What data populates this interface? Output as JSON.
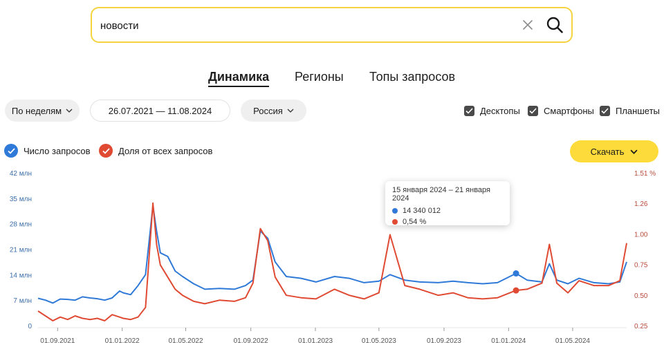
{
  "search": {
    "value": "новости"
  },
  "tabs": [
    {
      "label": "Динамика",
      "active": true
    },
    {
      "label": "Регионы",
      "active": false
    },
    {
      "label": "Топы запросов",
      "active": false
    }
  ],
  "filters": {
    "period_label": "По неделям",
    "date_range": "26.07.2021 — 11.08.2024",
    "region_label": "Россия"
  },
  "devices": [
    {
      "label": "Десктопы",
      "checked": true
    },
    {
      "label": "Смартфоны",
      "checked": true
    },
    {
      "label": "Планшеты",
      "checked": true
    }
  ],
  "legend": {
    "queries": {
      "label": "Число запросов",
      "color": "#2f7ad8"
    },
    "share": {
      "label": "Доля от всех запросов",
      "color": "#e04a33"
    }
  },
  "download_label": "Скачать",
  "tooltip": {
    "title": "15 января 2024 – 21 января 2024",
    "queries_value": "14 340 012",
    "share_value": "0,54 %"
  },
  "chart_data": {
    "type": "line",
    "x_start": "2021-07-26",
    "x_end": "2024-08-11",
    "x_tick_labels": [
      "01.09.2021",
      "01.01.2022",
      "01.05.2022",
      "01.09.2022",
      "01.01.2023",
      "01.05.2023",
      "01.09.2023",
      "01.01.2024",
      "01.05.2024"
    ],
    "y_left": {
      "ticks": [
        "0",
        "7 млн",
        "14 млн",
        "21 млн",
        "28 млн",
        "35 млн",
        "42 млн"
      ],
      "range": [
        0,
        42000000
      ]
    },
    "y_right": {
      "ticks": [
        "0.25",
        "0.50",
        "0.75",
        "1.00",
        "1.26",
        "1.51 %"
      ],
      "range": [
        0.25,
        1.51
      ]
    },
    "series": [
      {
        "name": "Число запросов",
        "color": "#2f7ad8",
        "axis": "left",
        "points": [
          [
            "2021-07-26",
            7.5
          ],
          [
            "2021-08-09",
            7.0
          ],
          [
            "2021-08-23",
            6.2
          ],
          [
            "2021-09-06",
            7.3
          ],
          [
            "2021-09-20",
            7.2
          ],
          [
            "2021-10-04",
            7.0
          ],
          [
            "2021-10-18",
            7.9
          ],
          [
            "2021-11-01",
            7.6
          ],
          [
            "2021-11-15",
            7.4
          ],
          [
            "2021-11-29",
            7.0
          ],
          [
            "2021-12-13",
            7.6
          ],
          [
            "2021-12-27",
            9.5
          ],
          [
            "2022-01-03",
            9.0
          ],
          [
            "2022-01-17",
            8.5
          ],
          [
            "2022-01-31",
            11.0
          ],
          [
            "2022-02-14",
            14.0
          ],
          [
            "2022-02-28",
            33.0
          ],
          [
            "2022-03-07",
            26.0
          ],
          [
            "2022-03-14",
            20.0
          ],
          [
            "2022-03-28",
            19.0
          ],
          [
            "2022-04-11",
            15.0
          ],
          [
            "2022-04-25",
            13.5
          ],
          [
            "2022-05-16",
            11.5
          ],
          [
            "2022-06-06",
            10.0
          ],
          [
            "2022-07-04",
            10.2
          ],
          [
            "2022-08-01",
            10.0
          ],
          [
            "2022-08-22",
            11.0
          ],
          [
            "2022-09-05",
            12.5
          ],
          [
            "2022-09-19",
            26.0
          ],
          [
            "2022-10-03",
            24.0
          ],
          [
            "2022-10-17",
            17.5
          ],
          [
            "2022-11-07",
            13.5
          ],
          [
            "2022-12-05",
            13.0
          ],
          [
            "2023-01-02",
            12.0
          ],
          [
            "2023-02-06",
            13.5
          ],
          [
            "2023-03-06",
            13.0
          ],
          [
            "2023-04-03",
            11.8
          ],
          [
            "2023-05-01",
            12.2
          ],
          [
            "2023-05-22",
            14.0
          ],
          [
            "2023-06-19",
            12.5
          ],
          [
            "2023-07-17",
            12.0
          ],
          [
            "2023-08-21",
            11.8
          ],
          [
            "2023-09-18",
            12.2
          ],
          [
            "2023-10-16",
            11.8
          ],
          [
            "2023-11-13",
            11.5
          ],
          [
            "2023-12-11",
            11.8
          ],
          [
            "2024-01-15",
            14.34
          ],
          [
            "2024-02-05",
            12.5
          ],
          [
            "2024-03-04",
            12.0
          ],
          [
            "2024-03-18",
            17.0
          ],
          [
            "2024-04-01",
            12.5
          ],
          [
            "2024-04-22",
            11.5
          ],
          [
            "2024-05-13",
            13.0
          ],
          [
            "2024-06-10",
            11.8
          ],
          [
            "2024-07-08",
            11.5
          ],
          [
            "2024-07-29",
            12.0
          ],
          [
            "2024-08-11",
            17.5
          ]
        ]
      },
      {
        "name": "Доля от всех запросов",
        "color": "#e04a33",
        "axis": "right",
        "points": [
          [
            "2021-07-26",
            0.37
          ],
          [
            "2021-08-09",
            0.33
          ],
          [
            "2021-08-23",
            0.29
          ],
          [
            "2021-09-06",
            0.32
          ],
          [
            "2021-09-20",
            0.3
          ],
          [
            "2021-10-04",
            0.33
          ],
          [
            "2021-10-18",
            0.31
          ],
          [
            "2021-11-01",
            0.3
          ],
          [
            "2021-11-15",
            0.31
          ],
          [
            "2021-11-29",
            0.29
          ],
          [
            "2021-12-13",
            0.34
          ],
          [
            "2021-12-27",
            0.32
          ],
          [
            "2022-01-03",
            0.31
          ],
          [
            "2022-01-17",
            0.3
          ],
          [
            "2022-01-31",
            0.32
          ],
          [
            "2022-02-14",
            0.4
          ],
          [
            "2022-02-28",
            1.26
          ],
          [
            "2022-03-07",
            0.92
          ],
          [
            "2022-03-14",
            0.75
          ],
          [
            "2022-03-28",
            0.65
          ],
          [
            "2022-04-11",
            0.55
          ],
          [
            "2022-04-25",
            0.5
          ],
          [
            "2022-05-16",
            0.45
          ],
          [
            "2022-06-06",
            0.43
          ],
          [
            "2022-07-04",
            0.46
          ],
          [
            "2022-08-01",
            0.45
          ],
          [
            "2022-08-22",
            0.48
          ],
          [
            "2022-09-05",
            0.6
          ],
          [
            "2022-09-19",
            1.05
          ],
          [
            "2022-10-03",
            0.95
          ],
          [
            "2022-10-17",
            0.65
          ],
          [
            "2022-11-07",
            0.5
          ],
          [
            "2022-12-05",
            0.48
          ],
          [
            "2023-01-02",
            0.47
          ],
          [
            "2023-02-06",
            0.55
          ],
          [
            "2023-03-06",
            0.5
          ],
          [
            "2023-04-03",
            0.47
          ],
          [
            "2023-05-01",
            0.52
          ],
          [
            "2023-05-22",
            1.0
          ],
          [
            "2023-06-19",
            0.58
          ],
          [
            "2023-07-17",
            0.55
          ],
          [
            "2023-08-21",
            0.5
          ],
          [
            "2023-09-18",
            0.52
          ],
          [
            "2023-10-16",
            0.48
          ],
          [
            "2023-11-13",
            0.47
          ],
          [
            "2023-12-11",
            0.48
          ],
          [
            "2024-01-15",
            0.54
          ],
          [
            "2024-02-05",
            0.55
          ],
          [
            "2024-03-04",
            0.6
          ],
          [
            "2024-03-18",
            0.92
          ],
          [
            "2024-04-01",
            0.6
          ],
          [
            "2024-04-22",
            0.52
          ],
          [
            "2024-05-13",
            0.62
          ],
          [
            "2024-06-10",
            0.58
          ],
          [
            "2024-07-08",
            0.58
          ],
          [
            "2024-07-29",
            0.62
          ],
          [
            "2024-08-11",
            0.93
          ]
        ]
      }
    ],
    "highlight": {
      "date": "2024-01-15",
      "queries": 14340012,
      "share": 0.54
    }
  }
}
